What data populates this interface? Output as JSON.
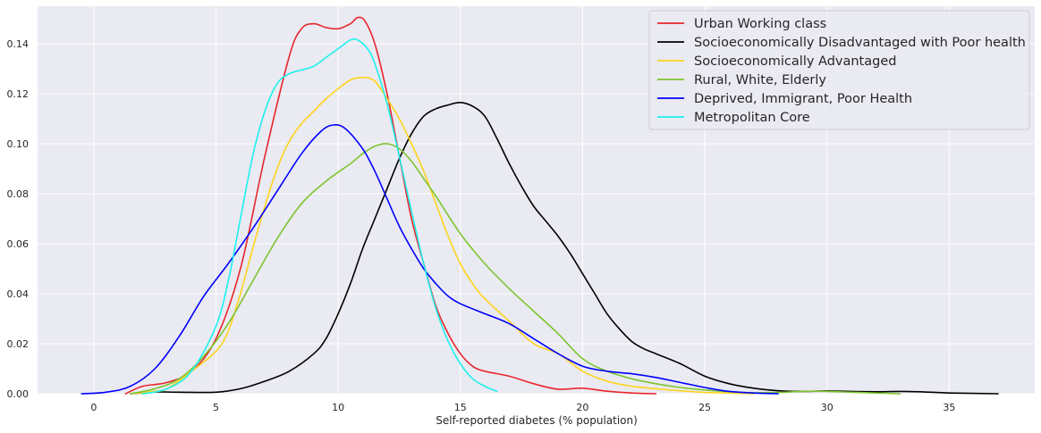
{
  "chart_data": {
    "type": "line",
    "title": "",
    "xlabel": "Self-reported diabetes (% population)",
    "ylabel": "",
    "xlim": [
      -2.3,
      38.5
    ],
    "ylim": [
      0,
      0.155
    ],
    "xticks": [
      0,
      5,
      10,
      15,
      20,
      25,
      30,
      35
    ],
    "yticks": [
      0.0,
      0.02,
      0.04,
      0.06,
      0.08,
      0.1,
      0.12,
      0.14
    ],
    "ytick_labels": [
      "0.00",
      "0.02",
      "0.04",
      "0.06",
      "0.08",
      "0.10",
      "0.12",
      "0.14"
    ],
    "grid": true,
    "legend_position": "top-right",
    "series": [
      {
        "name": "Urban Working class",
        "color": "#e8262b",
        "points": [
          [
            1.3,
            0
          ],
          [
            2,
            0.003
          ],
          [
            3,
            0.0045
          ],
          [
            4,
            0.009
          ],
          [
            5,
            0.022
          ],
          [
            6,
            0.05
          ],
          [
            7,
            0.095
          ],
          [
            8,
            0.135
          ],
          [
            8.5,
            0.146
          ],
          [
            9,
            0.148
          ],
          [
            9.5,
            0.1465
          ],
          [
            10,
            0.146
          ],
          [
            10.5,
            0.148
          ],
          [
            10.8,
            0.1505
          ],
          [
            11.1,
            0.149
          ],
          [
            11.5,
            0.14
          ],
          [
            12,
            0.12
          ],
          [
            12.5,
            0.095
          ],
          [
            13,
            0.07
          ],
          [
            13.5,
            0.052
          ],
          [
            14,
            0.035
          ],
          [
            14.5,
            0.024
          ],
          [
            15,
            0.016
          ],
          [
            15.5,
            0.011
          ],
          [
            16,
            0.009
          ],
          [
            17,
            0.007
          ],
          [
            18,
            0.004
          ],
          [
            19,
            0.0018
          ],
          [
            20,
            0.0022
          ],
          [
            21,
            0.001
          ],
          [
            22,
            0.0003
          ],
          [
            23,
            0
          ]
        ]
      },
      {
        "name": "Socioeconomically Disadvantaged with Poor health",
        "color": "#000000",
        "points": [
          [
            1.5,
            0
          ],
          [
            2.5,
            0.0007
          ],
          [
            3.5,
            0.0006
          ],
          [
            5,
            0.0006
          ],
          [
            6,
            0.002
          ],
          [
            7,
            0.005
          ],
          [
            8,
            0.009
          ],
          [
            9,
            0.016
          ],
          [
            9.5,
            0.022
          ],
          [
            10,
            0.032
          ],
          [
            10.5,
            0.044
          ],
          [
            11,
            0.058
          ],
          [
            11.5,
            0.07
          ],
          [
            12,
            0.082
          ],
          [
            12.5,
            0.094
          ],
          [
            13,
            0.104
          ],
          [
            13.5,
            0.111
          ],
          [
            14,
            0.114
          ],
          [
            14.5,
            0.1155
          ],
          [
            15,
            0.1165
          ],
          [
            15.5,
            0.115
          ],
          [
            16,
            0.111
          ],
          [
            16.5,
            0.102
          ],
          [
            17,
            0.092
          ],
          [
            17.5,
            0.083
          ],
          [
            18,
            0.075
          ],
          [
            18.5,
            0.069
          ],
          [
            19,
            0.063
          ],
          [
            19.5,
            0.056
          ],
          [
            20,
            0.048
          ],
          [
            20.5,
            0.04
          ],
          [
            21,
            0.032
          ],
          [
            21.5,
            0.026
          ],
          [
            22,
            0.021
          ],
          [
            22.5,
            0.018
          ],
          [
            23,
            0.016
          ],
          [
            24,
            0.012
          ],
          [
            25,
            0.007
          ],
          [
            26,
            0.004
          ],
          [
            27,
            0.0022
          ],
          [
            28,
            0.0012
          ],
          [
            29,
            0.0009
          ],
          [
            30,
            0.0011
          ],
          [
            31,
            0.0009
          ],
          [
            32,
            0.0008
          ],
          [
            33,
            0.0009
          ],
          [
            34,
            0.0007
          ],
          [
            35,
            0.0003
          ],
          [
            37,
            0
          ]
        ]
      },
      {
        "name": "Socioeconomically Advantaged",
        "color": "#fdd41b",
        "points": [
          [
            1.5,
            0
          ],
          [
            2.5,
            0.001
          ],
          [
            3,
            0.002
          ],
          [
            4,
            0.009
          ],
          [
            5,
            0.017
          ],
          [
            5.5,
            0.025
          ],
          [
            6,
            0.04
          ],
          [
            6.5,
            0.058
          ],
          [
            7,
            0.075
          ],
          [
            7.5,
            0.09
          ],
          [
            8,
            0.101
          ],
          [
            8.5,
            0.108
          ],
          [
            9,
            0.113
          ],
          [
            9.5,
            0.118
          ],
          [
            10,
            0.122
          ],
          [
            10.5,
            0.1255
          ],
          [
            11,
            0.1265
          ],
          [
            11.5,
            0.125
          ],
          [
            12,
            0.118
          ],
          [
            12.5,
            0.11
          ],
          [
            13,
            0.1
          ],
          [
            13.5,
            0.089
          ],
          [
            14,
            0.076
          ],
          [
            14.5,
            0.063
          ],
          [
            15,
            0.052
          ],
          [
            15.5,
            0.044
          ],
          [
            16,
            0.038
          ],
          [
            17,
            0.029
          ],
          [
            18,
            0.02
          ],
          [
            19,
            0.016
          ],
          [
            20,
            0.009
          ],
          [
            21,
            0.005
          ],
          [
            22,
            0.003
          ],
          [
            23,
            0.002
          ],
          [
            24,
            0.0012
          ],
          [
            25,
            0.0005
          ],
          [
            27,
            0
          ]
        ]
      },
      {
        "name": "Rural, White, Elderly",
        "color": "#7dc52f",
        "points": [
          [
            1.5,
            0
          ],
          [
            2.5,
            0.002
          ],
          [
            3.5,
            0.006
          ],
          [
            4.5,
            0.015
          ],
          [
            5.5,
            0.028
          ],
          [
            6.5,
            0.045
          ],
          [
            7.5,
            0.062
          ],
          [
            8.5,
            0.076
          ],
          [
            9.5,
            0.085
          ],
          [
            10.5,
            0.092
          ],
          [
            11,
            0.096
          ],
          [
            11.5,
            0.099
          ],
          [
            12,
            0.1
          ],
          [
            12.5,
            0.098
          ],
          [
            13,
            0.093
          ],
          [
            13.5,
            0.086
          ],
          [
            14,
            0.079
          ],
          [
            15,
            0.064
          ],
          [
            16,
            0.052
          ],
          [
            17,
            0.042
          ],
          [
            18,
            0.033
          ],
          [
            19,
            0.024
          ],
          [
            20,
            0.014
          ],
          [
            21,
            0.009
          ],
          [
            22,
            0.006
          ],
          [
            23,
            0.004
          ],
          [
            24,
            0.0025
          ],
          [
            25,
            0.0015
          ],
          [
            26,
            0.0008
          ],
          [
            27,
            0.0004
          ],
          [
            28,
            0.0005
          ],
          [
            29,
            0.0009
          ],
          [
            30,
            0.0009
          ],
          [
            31,
            0.0006
          ],
          [
            32,
            0.0003
          ],
          [
            33,
            0
          ]
        ]
      },
      {
        "name": "Deprived, Immigrant, Poor Health",
        "color": "#0000ff",
        "points": [
          [
            -0.5,
            0
          ],
          [
            0.5,
            0.0006
          ],
          [
            1.5,
            0.003
          ],
          [
            2.5,
            0.01
          ],
          [
            3.5,
            0.023
          ],
          [
            4.5,
            0.039
          ],
          [
            5.5,
            0.052
          ],
          [
            6.5,
            0.066
          ],
          [
            7.5,
            0.081
          ],
          [
            8.5,
            0.096
          ],
          [
            9.3,
            0.105
          ],
          [
            9.8,
            0.1075
          ],
          [
            10.3,
            0.106
          ],
          [
            11,
            0.098
          ],
          [
            11.5,
            0.089
          ],
          [
            12,
            0.078
          ],
          [
            12.5,
            0.067
          ],
          [
            13,
            0.058
          ],
          [
            13.5,
            0.05
          ],
          [
            14,
            0.044
          ],
          [
            14.5,
            0.039
          ],
          [
            15,
            0.036
          ],
          [
            16,
            0.032
          ],
          [
            17,
            0.028
          ],
          [
            18,
            0.022
          ],
          [
            19,
            0.016
          ],
          [
            20,
            0.011
          ],
          [
            21,
            0.009
          ],
          [
            22,
            0.008
          ],
          [
            23,
            0.0065
          ],
          [
            24,
            0.0045
          ],
          [
            25,
            0.0025
          ],
          [
            26,
            0.0009
          ],
          [
            27,
            0.0003
          ],
          [
            28,
            0
          ]
        ]
      },
      {
        "name": "Metropolitan Core",
        "color": "#1cf1ee",
        "points": [
          [
            2,
            0
          ],
          [
            3,
            0.002
          ],
          [
            4,
            0.009
          ],
          [
            5,
            0.027
          ],
          [
            5.5,
            0.045
          ],
          [
            6,
            0.07
          ],
          [
            6.5,
            0.095
          ],
          [
            7,
            0.113
          ],
          [
            7.5,
            0.124
          ],
          [
            8,
            0.128
          ],
          [
            8.5,
            0.1295
          ],
          [
            9,
            0.131
          ],
          [
            9.5,
            0.1345
          ],
          [
            10,
            0.138
          ],
          [
            10.5,
            0.1415
          ],
          [
            10.8,
            0.1415
          ],
          [
            11.2,
            0.138
          ],
          [
            11.5,
            0.132
          ],
          [
            12,
            0.116
          ],
          [
            12.5,
            0.095
          ],
          [
            13,
            0.073
          ],
          [
            13.5,
            0.052
          ],
          [
            14,
            0.034
          ],
          [
            14.5,
            0.021
          ],
          [
            15,
            0.012
          ],
          [
            15.5,
            0.006
          ],
          [
            16,
            0.003
          ],
          [
            16.5,
            0.0009
          ]
        ]
      }
    ]
  }
}
